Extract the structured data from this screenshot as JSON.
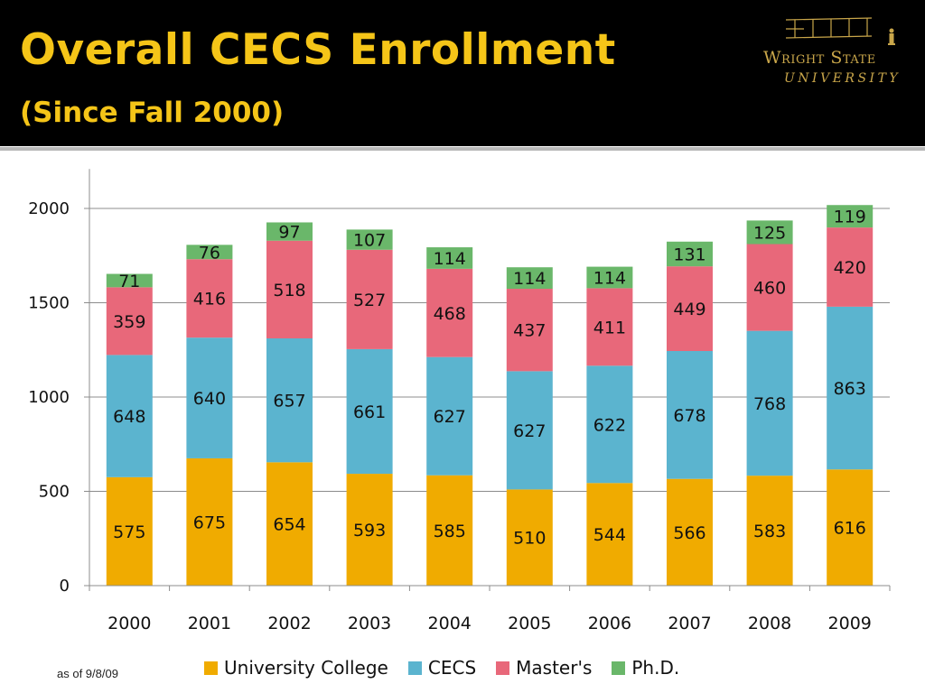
{
  "header": {
    "title": "Overall CECS Enrollment",
    "subtitle": "(Since Fall 2000)"
  },
  "logo": {
    "name": "Wright State",
    "university": "UNIVERSITY"
  },
  "footnote": "as of 9/8/09",
  "colors": {
    "header_bg": "#000000",
    "title": "#f5c518",
    "university_college": "#f0ab00",
    "cecs": "#5bb4cf",
    "masters": "#e8687a",
    "phd": "#6ab76a"
  },
  "chart_data": {
    "type": "bar",
    "stacked": true,
    "categories": [
      "2000",
      "2001",
      "2002",
      "2003",
      "2004",
      "2005",
      "2006",
      "2007",
      "2008",
      "2009"
    ],
    "series": [
      {
        "name": "University College",
        "color": "#f0ab00",
        "values": [
          575,
          675,
          654,
          593,
          585,
          510,
          544,
          566,
          583,
          616
        ]
      },
      {
        "name": "CECS",
        "color": "#5bb4cf",
        "values": [
          648,
          640,
          657,
          661,
          627,
          627,
          622,
          678,
          768,
          863
        ]
      },
      {
        "name": "Master's",
        "color": "#e8687a",
        "values": [
          359,
          416,
          518,
          527,
          468,
          437,
          411,
          449,
          460,
          420
        ]
      },
      {
        "name": "Ph.D.",
        "color": "#6ab76a",
        "values": [
          71,
          76,
          97,
          107,
          114,
          114,
          114,
          131,
          125,
          119
        ]
      }
    ],
    "yticks": [
      0,
      500,
      1000,
      1500,
      2000
    ],
    "ylim": [
      0,
      2200
    ],
    "grid": true,
    "legend_position": "bottom",
    "data_labels": true
  }
}
